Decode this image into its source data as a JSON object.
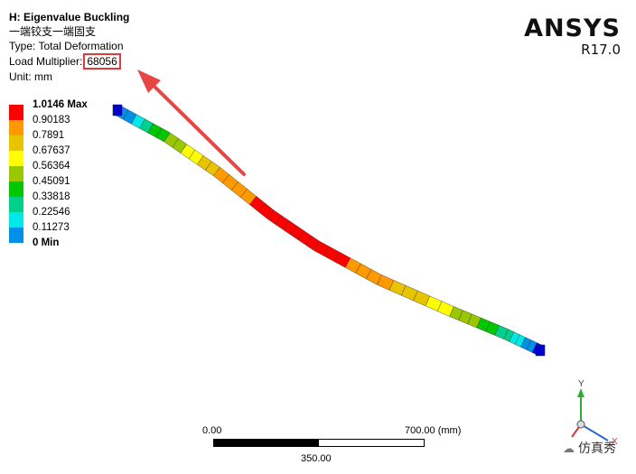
{
  "header": {
    "title": "H: Eigenvalue Buckling",
    "subtitle": "一端铰支一端固支",
    "type_label": "Type: Total Deformation",
    "load_label": "Load Multiplier:",
    "load_value": "68056",
    "unit_label": "Unit: mm"
  },
  "logo": {
    "brand": "ANSYS",
    "release": "R17.0"
  },
  "legend": {
    "labels": [
      "1.0146 Max",
      "0.90183",
      "0.7891",
      "0.67637",
      "0.56364",
      "0.45091",
      "0.33818",
      "0.22546",
      "0.11273",
      "0 Min"
    ],
    "colors": [
      "#ff0000",
      "#ff9900",
      "#e8c400",
      "#ffff00",
      "#9ac800",
      "#00c800",
      "#00d08a",
      "#00e8e8",
      "#0090e8",
      "#0000ff"
    ]
  },
  "scale": {
    "left_label": "0.00",
    "right_label": "700.00 (mm)",
    "mid_label": "350.00"
  },
  "triad": {
    "y_axis": "Y",
    "x_axis": "X"
  },
  "watermark": "仿真秀",
  "annotation": {
    "arrow_color": "#e84545"
  }
}
